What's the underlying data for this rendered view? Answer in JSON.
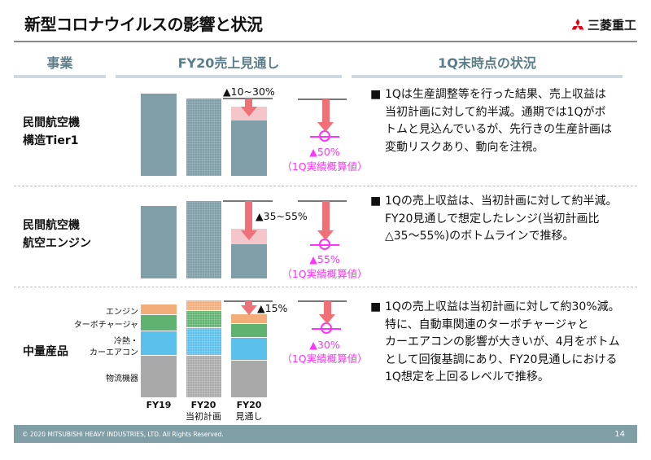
{
  "header": {
    "title": "新型コロナウイルスの影響と状況",
    "logo_text": "三菱重工"
  },
  "columns": {
    "business": "事業",
    "forecast": "FY20売上見通し",
    "status": "1Q末時点の状況"
  },
  "rows": [
    {
      "label_lines": [
        "民間航空機",
        "構造Tier1"
      ],
      "forecast_drop": "▲10~30%",
      "q1_drop": "▲50%",
      "q1_note": "（1Q実績概算値）",
      "status_lines": [
        "1Qは生産調整等を行った結果、売上収益は",
        "当初計画に対して約半減。通期では1Qがボ",
        "トムと見込んでいるが、先行きの生産計画は",
        "変動リスクあり、動向を注視。"
      ]
    },
    {
      "label_lines": [
        "民間航空機",
        "航空エンジン"
      ],
      "forecast_drop": "▲35~55%",
      "q1_drop": "▲55%",
      "q1_note": "（1Q実績概算値）",
      "status_lines": [
        "1Qの売上収益は、当初計画に対して約半減。",
        " FY20見通しで想定したレンジ(当初計画比",
        "△35～55%)のボトムラインで推移。"
      ]
    },
    {
      "label_lines": [
        "中量産品"
      ],
      "forecast_drop": "▲15%",
      "q1_drop": "▲30%",
      "q1_note": "（1Q実績概算値）",
      "status_lines": [
        "1Qの売上収益は当初計画に対して約30%減。",
        "特に、自動車関連のターボチャージャと",
        "カーエアコンの影響が大きいが、4月をボトム",
        "として回復基調にあり、FY20見通しにおける",
        "1Q想定を上回るレベルで推移。"
      ],
      "segments": [
        "エンジン",
        "ターボチャージャ",
        "冷熱・",
        "カーエアコン",
        "物流機器"
      ],
      "x_labels": [
        {
          "main": "FY19",
          "sub": ""
        },
        {
          "main": "FY20",
          "sub": "当初計画"
        },
        {
          "main": "FY20",
          "sub": "見通し"
        }
      ]
    }
  ],
  "bullet": "■",
  "footer": {
    "copyright": "© 2020 MITSUBISHI HEAVY INDUSTRIES, LTD.  All Rights Reserved.",
    "page": "14"
  },
  "colors": {
    "bar": "#7f9ea8",
    "drop_range": "#f4c6ca",
    "arrow": "#ef7077",
    "actual": "#ff33ff",
    "engine": "#f3ad7a",
    "turbo": "#5fb26f",
    "aircon": "#5bc0ec",
    "logistics": "#a9a9a9"
  }
}
